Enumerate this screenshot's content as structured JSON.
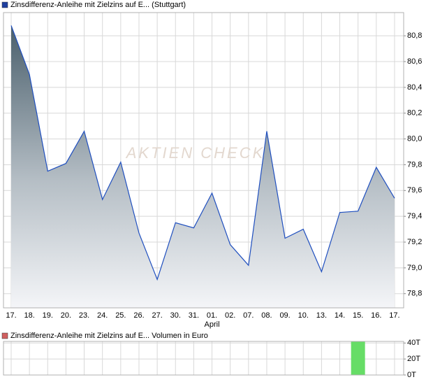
{
  "chart_data": [
    {
      "type": "area",
      "title": "Zinsdifferenz-Anleihe mit Zielzins auf E... (Stuttgart)",
      "watermark": "AKTIEN CHECK",
      "legend_color": "#1f3f9f",
      "color": "#1f4fbf",
      "categories": [
        "17.",
        "18.",
        "19.",
        "20.",
        "23.",
        "24.",
        "25.",
        "26.",
        "27.",
        "30.",
        "31.",
        "01.",
        "02.",
        "07.",
        "08.",
        "09.",
        "10.",
        "13.",
        "14.",
        "15.",
        "16.",
        "17."
      ],
      "month_labels": [
        {
          "index": 11,
          "label": "April"
        }
      ],
      "values": [
        80.88,
        80.5,
        79.75,
        79.81,
        80.06,
        79.53,
        79.82,
        79.27,
        78.91,
        79.35,
        79.31,
        79.58,
        79.18,
        79.02,
        80.06,
        79.23,
        79.3,
        78.97,
        79.43,
        79.44,
        79.78,
        79.54
      ],
      "ylim": [
        78.69,
        80.98
      ],
      "yticks": [
        {
          "value": 78.8,
          "label": "78,8"
        },
        {
          "value": 79.0,
          "label": "79,0"
        },
        {
          "value": 79.2,
          "label": "79,2"
        },
        {
          "value": 79.4,
          "label": "79,4"
        },
        {
          "value": 79.6,
          "label": "79,6"
        },
        {
          "value": 79.8,
          "label": "79,8"
        },
        {
          "value": 80.0,
          "label": "80,0"
        },
        {
          "value": 80.2,
          "label": "80,2"
        },
        {
          "value": 80.4,
          "label": "80,4"
        },
        {
          "value": 80.6,
          "label": "80,6"
        },
        {
          "value": 80.8,
          "label": "80,8"
        }
      ],
      "grid": true
    },
    {
      "type": "bar",
      "title": "Zinsdifferenz-Anleihe mit Zielzins auf E... Volumen in Euro",
      "legend_color": "#d06060",
      "color": "#66dd66",
      "values": [
        0,
        0,
        0,
        0,
        0,
        0,
        0,
        0,
        0,
        0,
        0,
        0,
        0,
        0,
        0,
        0,
        0,
        0,
        0,
        42,
        0,
        0
      ],
      "ylim": [
        0,
        42
      ],
      "yticks": [
        {
          "value": 0,
          "label": "0T"
        },
        {
          "value": 20,
          "label": "20T"
        },
        {
          "value": 40,
          "label": "40T"
        }
      ],
      "grid": true
    }
  ]
}
